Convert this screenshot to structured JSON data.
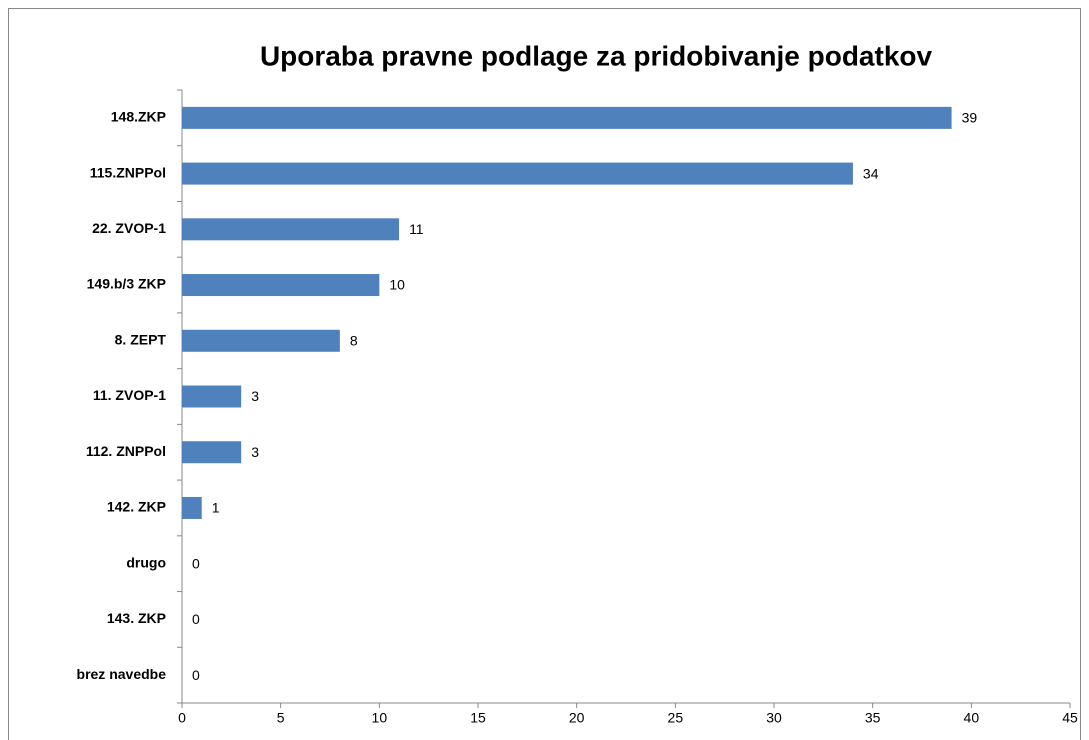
{
  "chart_data": {
    "type": "bar",
    "orientation": "horizontal",
    "title": "Uporaba pravne podlage za pridobivanje podatkov",
    "categories": [
      "148.ZKP",
      "115.ZNPPol",
      "22. ZVOP-1",
      "149.b/3 ZKP",
      "8. ZEPT",
      "11. ZVOP-1",
      "112. ZNPPol",
      "142. ZKP",
      "drugo",
      "143. ZKP",
      "brez navedbe"
    ],
    "values": [
      39,
      34,
      11,
      10,
      8,
      3,
      3,
      1,
      0,
      0,
      0
    ],
    "color": "#4f81bd",
    "xlim": [
      0,
      45
    ],
    "xticks": [
      0,
      5,
      10,
      15,
      20,
      25,
      30,
      35,
      40,
      45
    ],
    "grid": false
  }
}
